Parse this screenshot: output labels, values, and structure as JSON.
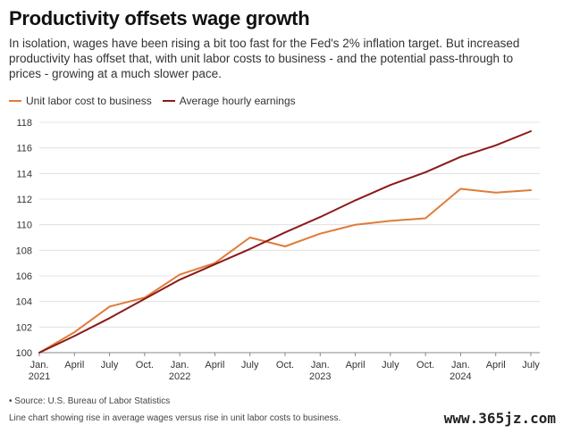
{
  "title": "Productivity offsets wage growth",
  "subtitle": "In isolation, wages have been rising a bit too fast for the Fed's 2% inflation target. But increased productivity has offset that, with unit labor costs to business - and the potential pass-through to prices - growing at a much slower pace.",
  "source": "• Source: U.S. Bureau of Labor Statistics",
  "note": "Line chart showing rise in average wages versus rise in unit labor costs to business.",
  "watermark": "www.365jz.com",
  "chart_data": {
    "type": "line",
    "grid": true,
    "legend_position": "top-left",
    "x": [
      "Jan. 2021",
      "April",
      "July",
      "Oct.",
      "Jan. 2022",
      "April",
      "July",
      "Oct.",
      "Jan. 2023",
      "April",
      "July",
      "Oct.",
      "Jan. 2024",
      "April",
      "July"
    ],
    "x_tick_labels": [
      {
        "line1": "Jan.",
        "line2": "2021"
      },
      {
        "line1": "April",
        "line2": ""
      },
      {
        "line1": "July",
        "line2": ""
      },
      {
        "line1": "Oct.",
        "line2": ""
      },
      {
        "line1": "Jan.",
        "line2": "2022"
      },
      {
        "line1": "April",
        "line2": ""
      },
      {
        "line1": "July",
        "line2": ""
      },
      {
        "line1": "Oct.",
        "line2": ""
      },
      {
        "line1": "Jan.",
        "line2": "2023"
      },
      {
        "line1": "April",
        "line2": ""
      },
      {
        "line1": "July",
        "line2": ""
      },
      {
        "line1": "Oct.",
        "line2": ""
      },
      {
        "line1": "Jan.",
        "line2": "2024"
      },
      {
        "line1": "April",
        "line2": ""
      },
      {
        "line1": "July",
        "line2": ""
      }
    ],
    "ylim": [
      100,
      118
    ],
    "yticks": [
      100,
      102,
      104,
      106,
      108,
      110,
      112,
      114,
      116,
      118
    ],
    "series": [
      {
        "name": "Unit labor cost to business",
        "color": "#e07b39",
        "values": [
          100.0,
          101.6,
          103.6,
          104.3,
          106.1,
          107.0,
          109.0,
          108.3,
          109.3,
          110.0,
          110.3,
          110.5,
          112.8,
          112.5,
          112.7
        ]
      },
      {
        "name": "Average hourly earnings",
        "color": "#8b1a1a",
        "values": [
          100.0,
          101.3,
          102.7,
          104.2,
          105.7,
          106.9,
          108.1,
          109.4,
          110.6,
          111.9,
          113.1,
          114.1,
          115.3,
          116.2,
          117.3
        ]
      }
    ]
  }
}
